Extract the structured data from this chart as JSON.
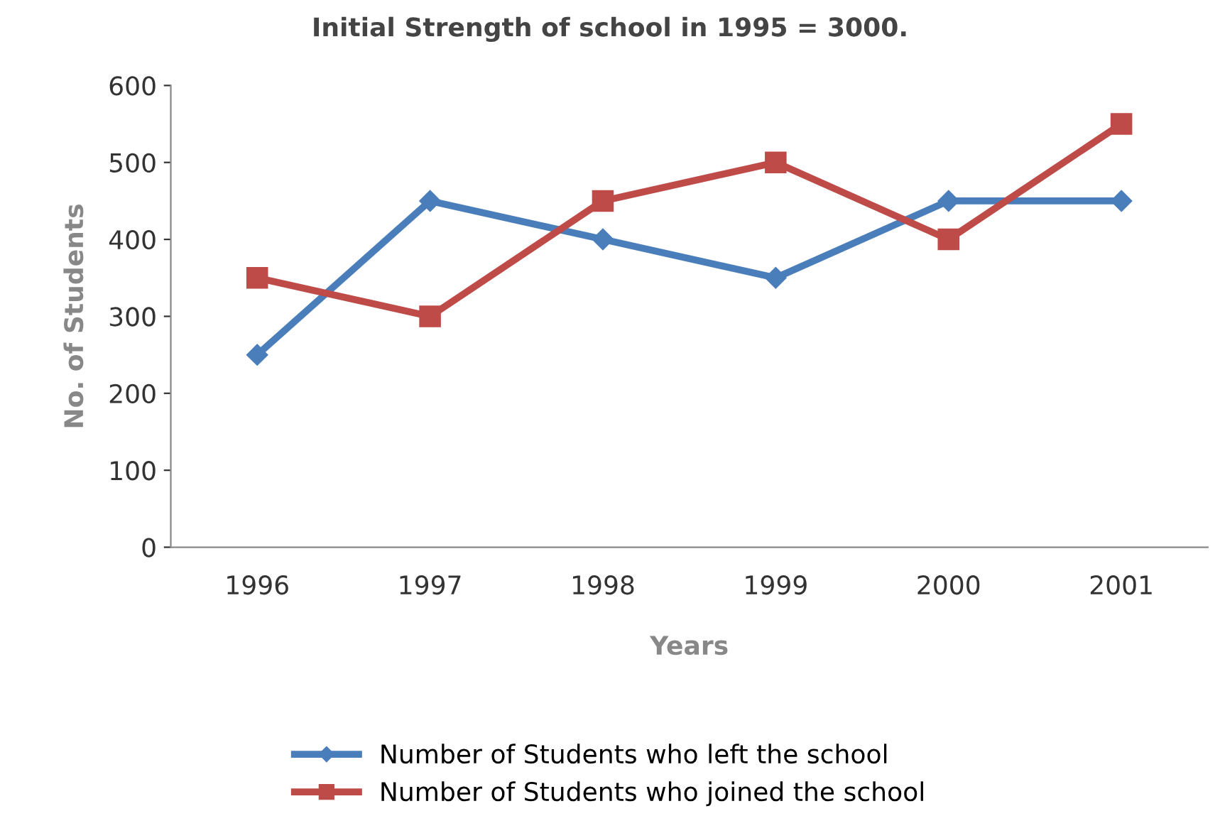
{
  "chart_data": {
    "type": "line",
    "title": "Initial Strength of school in 1995 = 3000.",
    "xlabel": "Years",
    "ylabel": "No. of Students",
    "categories": [
      "1996",
      "1997",
      "1998",
      "1999",
      "2000",
      "2001"
    ],
    "series": [
      {
        "name": "Number of Students who left the school",
        "color": "#4a7ebb",
        "marker": "diamond",
        "values": [
          250,
          450,
          400,
          350,
          450,
          450
        ]
      },
      {
        "name": "Number of Students who joined the school",
        "color": "#be4b48",
        "marker": "square",
        "values": [
          350,
          300,
          450,
          500,
          400,
          550
        ]
      }
    ],
    "ylim": [
      0,
      600
    ],
    "yticks": [
      0,
      100,
      200,
      300,
      400,
      500,
      600
    ],
    "grid": false,
    "legend": "bottom",
    "line_style": "solid"
  }
}
